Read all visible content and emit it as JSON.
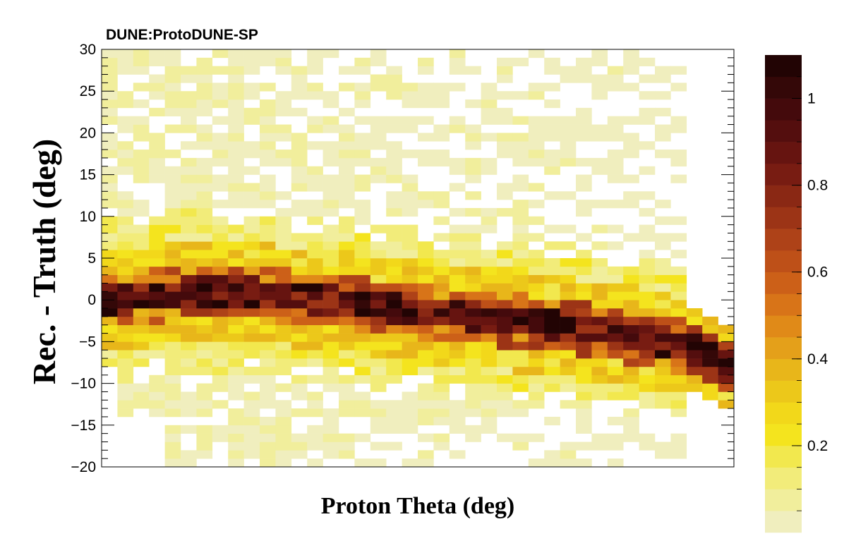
{
  "chart_data": {
    "type": "heatmap",
    "title": "DUNE:ProtoDUNE-SP",
    "xlabel": "Proton Theta (deg)",
    "ylabel": "Rec. - Truth (deg)",
    "xlim": [
      0,
      40
    ],
    "ylim": [
      -20,
      30
    ],
    "x_bins": 40,
    "y_bins": 50,
    "y_ticks": [
      -20,
      -15,
      -10,
      -5,
      0,
      5,
      10,
      15,
      20,
      25,
      30
    ],
    "z_range": [
      0,
      1.1
    ],
    "colorbar_ticks": [
      {
        "value": 0.2,
        "label": "0.2"
      },
      {
        "value": 0.4,
        "label": "0.4"
      },
      {
        "value": 0.6,
        "label": "0.6"
      },
      {
        "value": 0.8,
        "label": "0.8"
      },
      {
        "value": 1.0,
        "label": "1"
      }
    ],
    "palette": [
      "#f0eebe",
      "#f1ee9c",
      "#f2ec7a",
      "#f2e84e",
      "#f4e41e",
      "#f2d81a",
      "#ecc81a",
      "#e8b61a",
      "#e4a01a",
      "#e08a18",
      "#d87418",
      "#cc6018",
      "#be5018",
      "#ae4218",
      "#9c3416",
      "#8a2814",
      "#781c12",
      "#661410",
      "#540e0e",
      "#440a0c",
      "#340808",
      "#220404"
    ],
    "grid": false,
    "band_description_values": {
      "core_offset_deg": [
        0,
        0,
        0.4,
        0.6,
        0.8,
        1,
        1,
        1,
        1,
        1,
        0.8,
        0.5,
        0.2,
        0,
        0,
        -0.2,
        -0.5,
        -0.8,
        -1,
        -1.2,
        -1.4,
        -1.6,
        -1.8,
        -2,
        -2.2,
        -2.4,
        -2.6,
        -2.8,
        -3,
        -3.2,
        -3.5,
        -3.8,
        -4.1,
        -4.4,
        -4.7,
        -5,
        -5.5,
        -6,
        -7,
        -8
      ]
    }
  }
}
